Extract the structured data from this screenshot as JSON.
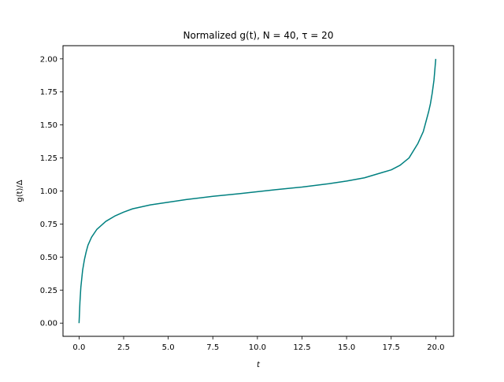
{
  "chart_data": {
    "type": "line",
    "title": "Normalized g(t), N = 40, τ = 20",
    "xlabel": "t",
    "ylabel": "g(t)/Δ",
    "xlim": [
      -0.9,
      21.0
    ],
    "ylim": [
      -0.1,
      2.1
    ],
    "xticks": [
      0.0,
      2.5,
      5.0,
      7.5,
      10.0,
      12.5,
      15.0,
      17.5,
      20.0
    ],
    "xtick_labels": [
      "0.0",
      "2.5",
      "5.0",
      "7.5",
      "10.0",
      "12.5",
      "15.0",
      "17.5",
      "20.0"
    ],
    "yticks": [
      0.0,
      0.25,
      0.5,
      0.75,
      1.0,
      1.25,
      1.5,
      1.75,
      2.0
    ],
    "ytick_labels": [
      "0.00",
      "0.25",
      "0.50",
      "0.75",
      "1.00",
      "1.25",
      "1.50",
      "1.75",
      "2.00"
    ],
    "grid": false,
    "series": [
      {
        "color": "#008080",
        "x": [
          0.0,
          0.05,
          0.1,
          0.2,
          0.3,
          0.4,
          0.5,
          0.7,
          1.0,
          1.5,
          2.0,
          2.5,
          3.0,
          4.0,
          5.0,
          6.0,
          7.5,
          9.0,
          10.0,
          11.0,
          12.5,
          14.0,
          15.0,
          16.0,
          17.0,
          17.5,
          18.0,
          18.5,
          19.0,
          19.3,
          19.5,
          19.6,
          19.7,
          19.8,
          19.9,
          19.95,
          20.0
        ],
        "y": [
          0.0,
          0.16,
          0.27,
          0.4,
          0.48,
          0.54,
          0.59,
          0.65,
          0.71,
          0.77,
          0.81,
          0.84,
          0.865,
          0.895,
          0.915,
          0.935,
          0.96,
          0.98,
          0.995,
          1.01,
          1.03,
          1.055,
          1.075,
          1.1,
          1.14,
          1.16,
          1.195,
          1.25,
          1.36,
          1.45,
          1.55,
          1.6,
          1.66,
          1.74,
          1.84,
          1.92,
          2.0
        ]
      }
    ]
  }
}
